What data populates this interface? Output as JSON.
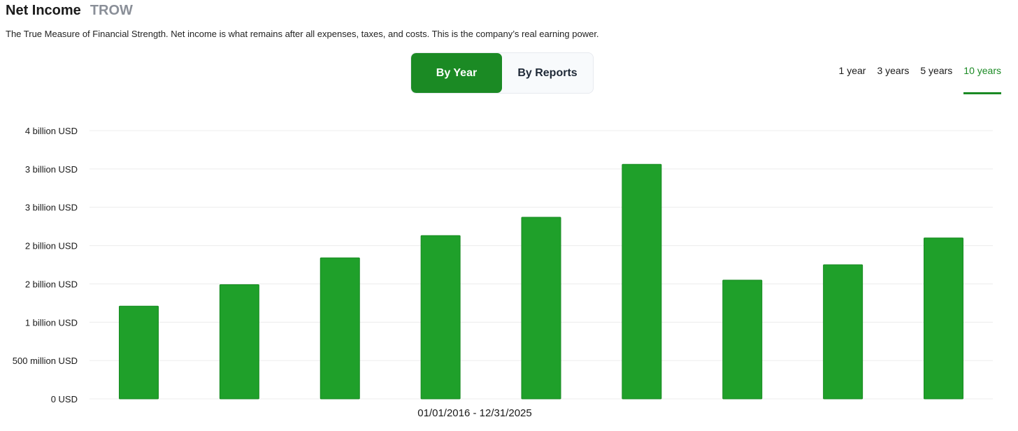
{
  "header": {
    "title": "Net Income",
    "ticker": "TROW",
    "description": "The True Measure of Financial Strength. Net income is what remains after all expenses, taxes, and costs. This is the company’s real earning power."
  },
  "mode_toggle": {
    "options": [
      "By Year",
      "By Reports"
    ],
    "selected": "By Year"
  },
  "range_tabs": {
    "options": [
      "1 year",
      "3 years",
      "5 years",
      "10 years"
    ],
    "selected": "10 years"
  },
  "colors": {
    "bar": "#1fa02a",
    "accent": "#1b8a24",
    "grid": "#ececec"
  },
  "chart_data": {
    "type": "bar",
    "x_range_label": "01/01/2016 - 12/31/2025",
    "y_ticks": [
      "0 USD",
      "500 million USD",
      "1 billion USD",
      "2 billion USD",
      "2 billion USD",
      "3 billion USD",
      "3 billion USD",
      "4 billion USD"
    ],
    "ylim": [
      0,
      3.5
    ],
    "values": [
      1.21,
      1.49,
      1.84,
      2.13,
      2.37,
      3.06,
      1.55,
      1.75,
      2.1
    ],
    "unit": "billion USD",
    "grid": true
  }
}
